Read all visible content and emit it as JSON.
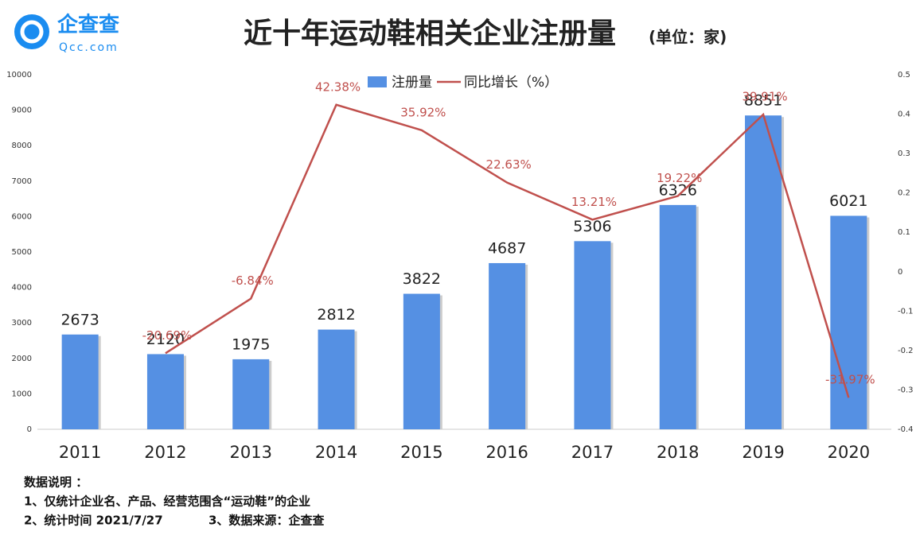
{
  "brand": {
    "name": "企查查",
    "site": "Qcc.com"
  },
  "chart_data": {
    "type": "bar-line",
    "title": "近十年运动鞋相关企业注册量",
    "subtitle": "(单位：家)",
    "categories": [
      "2011",
      "2012",
      "2013",
      "2014",
      "2015",
      "2016",
      "2017",
      "2018",
      "2019",
      "2020"
    ],
    "series": [
      {
        "name": "注册量",
        "type": "bar",
        "color": "#5590e3",
        "values": [
          2673,
          2120,
          1975,
          2812,
          3822,
          4687,
          5306,
          6326,
          8851,
          6021
        ]
      },
      {
        "name": "同比增长（%）",
        "type": "line",
        "axis": "y2",
        "color": "#c0504d",
        "values": [
          null,
          -0.2069,
          -0.0684,
          0.4238,
          0.3592,
          0.2263,
          0.1321,
          0.1922,
          0.3991,
          -0.3197
        ],
        "value_labels": [
          null,
          "-20.69%",
          "-6.84%",
          "42.38%",
          "35.92%",
          "22.63%",
          "13.21%",
          "19.22%",
          "39.91%",
          "-31.97%"
        ]
      }
    ],
    "ylim": [
      0,
      10000
    ],
    "yticks": [
      0,
      1000,
      2000,
      3000,
      4000,
      5000,
      6000,
      7000,
      8000,
      9000,
      10000
    ],
    "y2lim": [
      -0.4,
      0.5
    ],
    "y2ticks": [
      -0.4,
      -0.3,
      -0.2,
      -0.1,
      0,
      0.1,
      0.2,
      0.3,
      0.4,
      0.5
    ],
    "legend": "top",
    "notes": [
      "数据说明 ：",
      "1、仅统计企业名、产品、经营范围含“运动鞋”的企业",
      "2、统计时间 2021/7/27",
      "3、数据来源：企查查"
    ]
  }
}
